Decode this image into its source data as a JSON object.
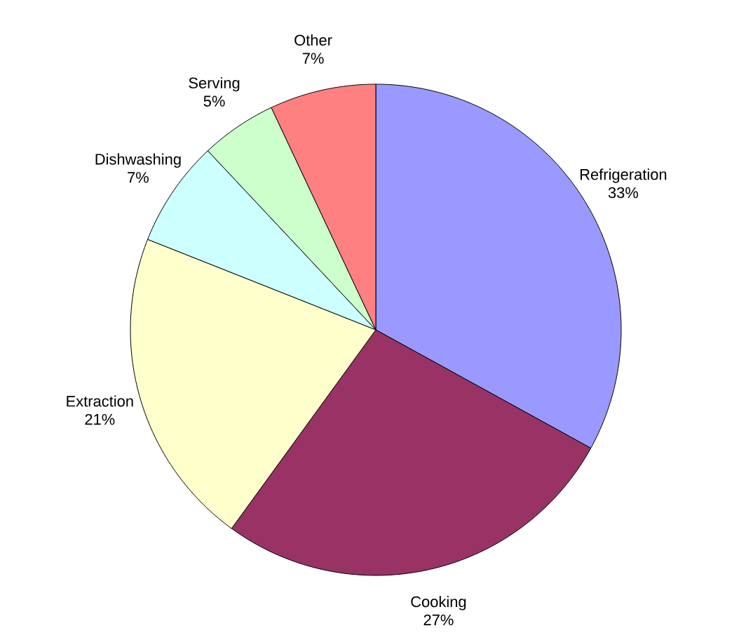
{
  "chart_data": {
    "type": "pie",
    "categories": [
      "Refrigeration",
      "Cooking",
      "Extraction",
      "Dishwashing",
      "Serving",
      "Other"
    ],
    "values": [
      33,
      27,
      21,
      7,
      5,
      7
    ],
    "value_labels": [
      "33%",
      "27%",
      "21%",
      "7%",
      "5%",
      "7%"
    ],
    "colors": [
      "#9999ff",
      "#993366",
      "#ffffcc",
      "#ccffff",
      "#ccffcc",
      "#ff8080"
    ]
  }
}
